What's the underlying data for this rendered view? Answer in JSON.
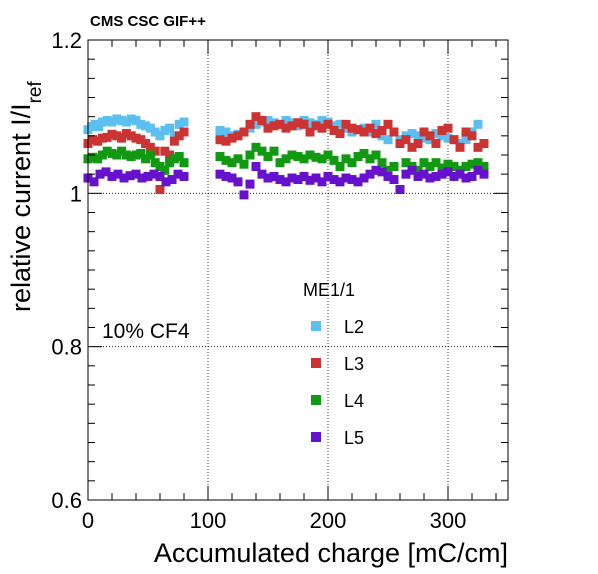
{
  "header": "CMS CSC GIF++",
  "annotation": "10% CF4",
  "chart_data": {
    "type": "scatter",
    "xlabel": "Accumulated charge [mC/cm]",
    "ylabel_main": "relative current I/I",
    "ylabel_sub": "ref",
    "xlim": [
      0,
      350
    ],
    "ylim": [
      0.6,
      1.2
    ],
    "xticks": [
      0,
      100,
      200,
      300
    ],
    "yticks": [
      0.6,
      0.8,
      1,
      1.2
    ],
    "xtick_labels": [
      "0",
      "100",
      "200",
      "300"
    ],
    "ytick_labels": [
      "0.6",
      "0.8",
      "1",
      "1.2"
    ],
    "grid_x": [
      100,
      200,
      300
    ],
    "grid_y": [
      0.8,
      1.0
    ],
    "legend": {
      "title": "ME1/1",
      "position": "center-right"
    },
    "series": [
      {
        "name": "L2",
        "color": "#5bc0f0",
        "x": [
          0,
          3,
          6,
          9,
          12,
          16,
          20,
          24,
          28,
          32,
          36,
          40,
          44,
          48,
          52,
          56,
          60,
          64,
          68,
          72,
          76,
          80,
          110,
          115,
          120,
          125,
          130,
          135,
          140,
          145,
          150,
          155,
          160,
          165,
          170,
          175,
          180,
          185,
          190,
          195,
          200,
          205,
          210,
          215,
          220,
          225,
          230,
          235,
          240,
          245,
          250,
          255,
          260,
          265,
          270,
          275,
          280,
          285,
          290,
          295,
          300,
          305,
          310,
          315,
          320,
          325,
          330
        ],
        "y": [
          1.083,
          1.087,
          1.09,
          1.087,
          1.093,
          1.095,
          1.093,
          1.097,
          1.095,
          1.093,
          1.097,
          1.095,
          1.09,
          1.088,
          1.085,
          1.08,
          1.075,
          1.082,
          1.085,
          1.075,
          1.09,
          1.093,
          1.082,
          1.08,
          1.075,
          1.077,
          1.08,
          1.085,
          1.09,
          1.093,
          1.095,
          1.092,
          1.09,
          1.095,
          1.092,
          1.088,
          1.095,
          1.092,
          1.09,
          1.095,
          1.093,
          1.088,
          1.09,
          1.085,
          1.08,
          1.083,
          1.085,
          1.08,
          1.09,
          1.075,
          1.07,
          1.08,
          1.07,
          1.075,
          1.078,
          1.075,
          1.072,
          1.07,
          1.078,
          1.075,
          1.072,
          1.07,
          1.065,
          1.07,
          1.08,
          1.09,
          1.065
        ]
      },
      {
        "name": "L3",
        "color": "#cc3333",
        "x": [
          0,
          4,
          8,
          12,
          16,
          20,
          24,
          28,
          32,
          36,
          40,
          44,
          48,
          52,
          56,
          60,
          64,
          68,
          72,
          76,
          80,
          110,
          115,
          120,
          125,
          130,
          135,
          140,
          145,
          150,
          155,
          160,
          165,
          170,
          175,
          180,
          185,
          190,
          195,
          200,
          205,
          210,
          215,
          220,
          225,
          230,
          235,
          240,
          245,
          250,
          255,
          260,
          265,
          270,
          275,
          280,
          285,
          290,
          295,
          300,
          305,
          310,
          315,
          320,
          325,
          330
        ],
        "y": [
          1.065,
          1.07,
          1.068,
          1.072,
          1.073,
          1.077,
          1.075,
          1.072,
          1.078,
          1.075,
          1.072,
          1.07,
          1.065,
          1.06,
          1.055,
          1.005,
          1.055,
          1.05,
          1.068,
          1.075,
          1.08,
          1.07,
          1.068,
          1.072,
          1.075,
          1.08,
          1.09,
          1.1,
          1.095,
          1.085,
          1.088,
          1.09,
          1.085,
          1.088,
          1.092,
          1.09,
          1.08,
          1.088,
          1.085,
          1.09,
          1.082,
          1.078,
          1.09,
          1.085,
          1.083,
          1.08,
          1.085,
          1.078,
          1.082,
          1.09,
          1.08,
          1.065,
          1.07,
          1.06,
          1.065,
          1.08,
          1.075,
          1.065,
          1.082,
          1.085,
          1.07,
          1.06,
          1.08,
          1.075,
          1.06,
          1.065
        ]
      },
      {
        "name": "L4",
        "color": "#119911",
        "x": [
          0,
          4,
          8,
          12,
          16,
          20,
          24,
          28,
          32,
          36,
          40,
          44,
          48,
          52,
          56,
          60,
          64,
          68,
          72,
          76,
          80,
          110,
          115,
          120,
          125,
          130,
          135,
          140,
          145,
          150,
          155,
          160,
          165,
          170,
          175,
          180,
          185,
          190,
          195,
          200,
          205,
          210,
          215,
          220,
          225,
          230,
          235,
          240,
          245,
          250,
          255,
          260,
          265,
          270,
          275,
          280,
          285,
          290,
          295,
          300,
          305,
          310,
          315,
          320,
          325,
          330
        ],
        "y": [
          1.045,
          1.047,
          1.045,
          1.05,
          1.055,
          1.052,
          1.05,
          1.055,
          1.05,
          1.048,
          1.05,
          1.052,
          1.045,
          1.05,
          1.04,
          1.035,
          1.03,
          1.04,
          1.045,
          1.048,
          1.04,
          1.048,
          1.043,
          1.04,
          1.045,
          1.038,
          1.05,
          1.06,
          1.055,
          1.048,
          1.055,
          1.04,
          1.045,
          1.05,
          1.048,
          1.045,
          1.05,
          1.047,
          1.045,
          1.05,
          1.043,
          1.035,
          1.045,
          1.04,
          1.048,
          1.052,
          1.045,
          1.05,
          1.04,
          1.03,
          1.035,
          1.005,
          1.04,
          1.035,
          1.03,
          1.04,
          1.035,
          1.04,
          1.033,
          1.038,
          1.035,
          1.03,
          1.035,
          1.038,
          1.04,
          1.035
        ]
      },
      {
        "name": "L5",
        "color": "#6611cc",
        "x": [
          0,
          5,
          10,
          15,
          20,
          25,
          30,
          35,
          40,
          45,
          50,
          55,
          60,
          65,
          70,
          75,
          80,
          110,
          115,
          120,
          125,
          130,
          135,
          140,
          145,
          150,
          155,
          160,
          165,
          170,
          175,
          180,
          185,
          190,
          195,
          200,
          205,
          210,
          215,
          220,
          225,
          230,
          235,
          240,
          245,
          250,
          255,
          260,
          265,
          270,
          275,
          280,
          285,
          290,
          295,
          300,
          305,
          310,
          315,
          320,
          325,
          330
        ],
        "y": [
          1.02,
          1.015,
          1.025,
          1.028,
          1.022,
          1.025,
          1.02,
          1.023,
          1.025,
          1.02,
          1.022,
          1.025,
          1.022,
          1.015,
          1.018,
          1.025,
          1.022,
          1.025,
          1.022,
          1.02,
          1.015,
          0.998,
          1.012,
          1.035,
          1.025,
          1.02,
          1.022,
          1.018,
          1.015,
          1.02,
          1.018,
          1.022,
          1.017,
          1.02,
          1.015,
          1.022,
          1.018,
          1.015,
          1.02,
          1.018,
          1.015,
          1.02,
          1.025,
          1.03,
          1.028,
          1.022,
          1.018,
          1.005,
          1.025,
          1.03,
          1.022,
          1.025,
          1.02,
          1.022,
          1.025,
          1.028,
          1.022,
          1.025,
          1.02,
          1.022,
          1.03,
          1.025
        ]
      }
    ]
  }
}
